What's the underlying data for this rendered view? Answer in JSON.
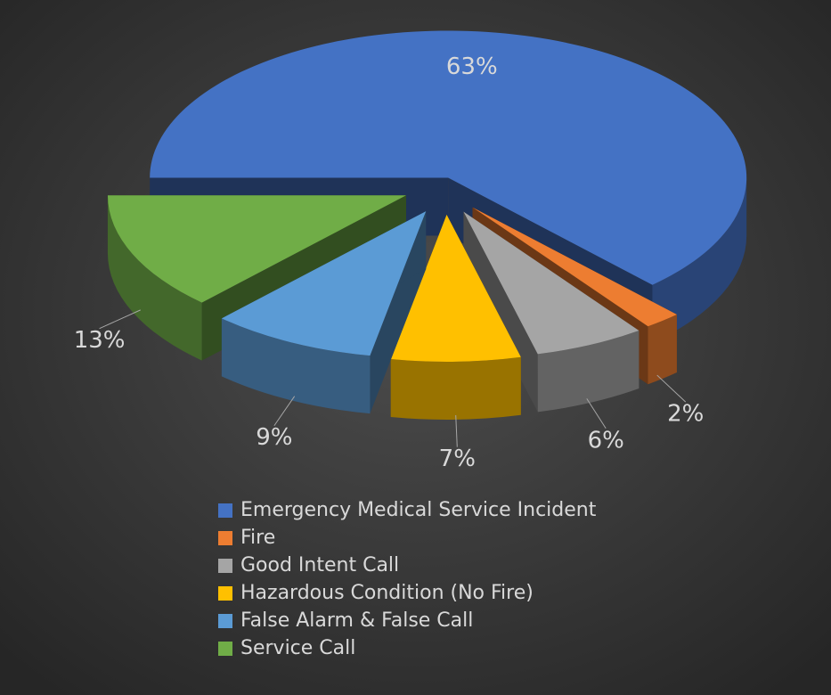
{
  "chart_data": {
    "type": "pie",
    "categories": [
      "Emergency Medical Service Incident",
      "Fire",
      "Good Intent Call",
      "Hazardous Condition (No Fire)",
      "False Alarm & False Call",
      "Service Call"
    ],
    "values": [
      63,
      2,
      6,
      7,
      9,
      13
    ],
    "value_labels": [
      "63%",
      "2%",
      "6%",
      "7%",
      "9%",
      "13%"
    ],
    "colors": [
      "#4472c4",
      "#ed7d31",
      "#a5a5a5",
      "#ffc000",
      "#5b9bd5",
      "#70ad47"
    ],
    "legend": "bottom"
  }
}
